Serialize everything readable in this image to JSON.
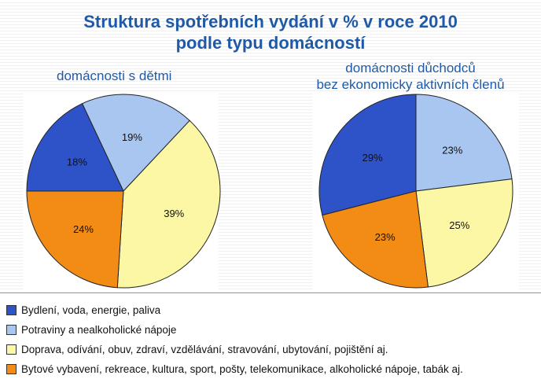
{
  "title_line1": "Struktura spotřebních vydání v % v roce 2010",
  "title_line2": "podle typu domácností",
  "colors": {
    "housing": "#2e53c9",
    "food": "#a9c6f0",
    "transport": "#fbf7a4",
    "furnishing": "#f28c14"
  },
  "chart_data": [
    {
      "type": "pie",
      "title": "domácnosti s dětmi",
      "labels": [
        "Bydlení, voda, energie, paliva",
        "Potraviny a nealkoholické nápoje",
        "Doprava, odívání, obuv, zdraví, vzdělávání, stravování, ubytování, pojištění aj.",
        "Bytové vybavení, rekreace, kultura, sport, pošty, telekomunikace, alkoholické nápoje, tabák aj."
      ],
      "values": [
        18,
        19,
        39,
        24
      ],
      "value_labels": [
        "18%",
        "19%",
        "39%",
        "24%"
      ]
    },
    {
      "type": "pie",
      "title_line1": "domácnosti důchodců",
      "title_line2": "bez ekonomicky aktivních členů",
      "labels": [
        "Bydlení, voda, energie, paliva",
        "Potraviny a nealkoholické nápoje",
        "Doprava, odívání, obuv, zdraví, vzdělávání, stravování, ubytování, pojištění aj.",
        "Bytové vybavení, rekreace, kultura, sport, pošty, telekomunikace, alkoholické nápoje, tabák aj."
      ],
      "values": [
        29,
        23,
        25,
        23
      ],
      "value_labels": [
        "29%",
        "23%",
        "25%",
        "23%"
      ]
    }
  ],
  "legend": [
    {
      "label": "Bydlení, voda, energie, paliva",
      "color_key": "housing"
    },
    {
      "label": "Potraviny a nealkoholické nápoje",
      "color_key": "food"
    },
    {
      "label": "Doprava, odívání, obuv, zdraví, vzdělávání, stravování, ubytování, pojištění aj.",
      "color_key": "transport"
    },
    {
      "label": "Bytové vybavení, rekreace, kultura, sport, pošty, telekomunikace, alkoholické nápoje, tabák aj.",
      "color_key": "furnishing"
    }
  ]
}
